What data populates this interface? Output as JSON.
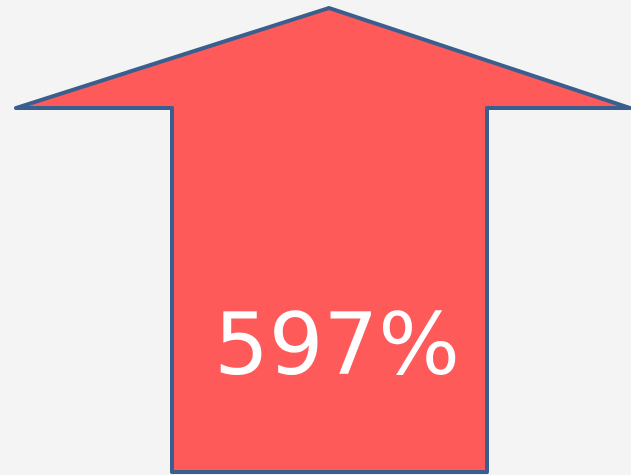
{
  "label": "597%"
}
